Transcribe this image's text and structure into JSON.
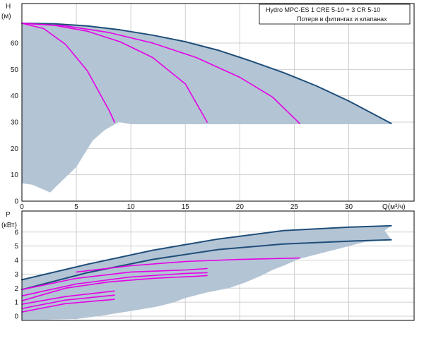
{
  "chart_data": [
    {
      "type": "line",
      "legend": {
        "title": "Hydro MPC-ES 1 CRE 5-10  +  3 CR 5-10",
        "subtitle": "Потеря в фитингах и клапанах",
        "placement": "top-right"
      },
      "xlabel": "Q(м³/ч)",
      "ylabel": "H",
      "ylabel_unit": "(м)",
      "xlim": [
        0,
        36
      ],
      "ylim": [
        0,
        75
      ],
      "xticks": [
        0,
        5,
        10,
        15,
        20,
        25,
        30
      ],
      "yticks": [
        0,
        10,
        20,
        30,
        40,
        50,
        60
      ],
      "grid": true,
      "shade_color": "#b3c4d5",
      "colors": {
        "max_curve": "#1f4e79",
        "speed_curves": "#e600e6",
        "grid": "#cfcfcf",
        "axis": "#000000"
      },
      "shaded_region": {
        "upper": [
          [
            0,
            67.5
          ],
          [
            5,
            66.8
          ],
          [
            10,
            64.5
          ],
          [
            15,
            60.5
          ],
          [
            20,
            55
          ],
          [
            25,
            47.5
          ],
          [
            30,
            38
          ],
          [
            33.9,
            29.5
          ]
        ],
        "lower": [
          [
            33.9,
            29.2
          ],
          [
            10,
            29.2
          ],
          [
            8.9,
            30
          ],
          [
            7.6,
            27
          ],
          [
            6.5,
            23
          ],
          [
            5,
            13
          ],
          [
            3,
            5
          ],
          [
            2.6,
            3.3
          ],
          [
            1,
            6.2
          ],
          [
            0,
            6.8
          ]
        ]
      },
      "series": [
        {
          "role": "max-speed",
          "color": "#1f4e79",
          "x": [
            0,
            3,
            6,
            9,
            12,
            15,
            18,
            21,
            24,
            27,
            30,
            33.9
          ],
          "y": [
            67.5,
            67.3,
            66.5,
            65,
            63,
            60.5,
            57.3,
            53.2,
            48.8,
            43.8,
            38,
            29.5
          ]
        },
        {
          "role": "one-pump",
          "color": "#e600e6",
          "x": [
            0,
            2,
            4,
            6,
            8,
            8.5
          ],
          "y": [
            67.5,
            65.5,
            59.5,
            49.5,
            34.5,
            30
          ]
        },
        {
          "role": "two-pumps",
          "color": "#e600e6",
          "x": [
            0,
            3,
            6,
            9,
            12,
            15,
            17
          ],
          "y": [
            67.5,
            66.7,
            64.5,
            60.5,
            54.5,
            44.5,
            30
          ]
        },
        {
          "role": "three-pumps",
          "color": "#e600e6",
          "x": [
            0,
            4,
            8,
            12,
            16,
            20,
            23,
            25.5
          ],
          "y": [
            67.5,
            66.5,
            64,
            60,
            54.5,
            47,
            39.5,
            29.5
          ]
        }
      ]
    },
    {
      "type": "line",
      "ylabel": "P",
      "ylabel_unit": "(кВт)",
      "xlim": [
        0,
        36
      ],
      "ylim": [
        -0.3,
        7.5
      ],
      "yticks": [
        0,
        1,
        2,
        3,
        4,
        5,
        6
      ],
      "grid": true,
      "shade_color": "#b3c4d5",
      "shaded_region": {
        "upper": [
          [
            0,
            2.6
          ],
          [
            6,
            3.7
          ],
          [
            12,
            4.7
          ],
          [
            18,
            5.5
          ],
          [
            24,
            6.1
          ],
          [
            30,
            6.35
          ],
          [
            33.9,
            6.45
          ]
        ],
        "lower": [
          [
            33.9,
            6.45
          ],
          [
            33.3,
            6.1
          ],
          [
            33.9,
            5.45
          ],
          [
            31.5,
            5.3
          ],
          [
            29.5,
            4.9
          ],
          [
            27.5,
            4.5
          ],
          [
            25.5,
            4.1
          ],
          [
            24,
            3.6
          ],
          [
            23,
            3.3
          ],
          [
            22,
            2.9
          ],
          [
            20.5,
            2.4
          ],
          [
            19,
            2.0
          ],
          [
            17,
            1.7
          ],
          [
            16.5,
            1.6
          ],
          [
            15,
            1.3
          ],
          [
            14,
            1.0
          ],
          [
            12.5,
            0.7
          ],
          [
            11,
            0.5
          ],
          [
            9,
            0.25
          ],
          [
            7,
            0.0
          ],
          [
            5,
            -0.2
          ],
          [
            2,
            -0.25
          ],
          [
            0,
            -0.25
          ]
        ]
      },
      "series": [
        {
          "role": "top-dark",
          "color": "#1f4e79",
          "x": [
            0,
            6,
            12,
            18,
            24,
            30,
            33.9
          ],
          "y": [
            2.6,
            3.7,
            4.7,
            5.5,
            6.1,
            6.35,
            6.45
          ]
        },
        {
          "role": "second-dark",
          "color": "#1f4e79",
          "x": [
            0,
            6,
            12,
            18,
            24,
            30,
            33.9
          ],
          "y": [
            1.9,
            3.1,
            4.05,
            4.75,
            5.15,
            5.35,
            5.45
          ]
        },
        {
          "role": "magenta-1",
          "color": "#e600e6",
          "x": [
            5,
            10,
            15,
            20,
            25.5
          ],
          "y": [
            3.15,
            3.6,
            3.9,
            4.05,
            4.15
          ]
        },
        {
          "role": "magenta-2",
          "color": "#e600e6",
          "x": [
            0,
            5,
            10,
            15,
            17
          ],
          "y": [
            1.9,
            2.7,
            3.15,
            3.3,
            3.4
          ]
        },
        {
          "role": "magenta-3",
          "color": "#e600e6",
          "x": [
            0,
            5,
            10,
            15,
            17
          ],
          "y": [
            1.45,
            2.3,
            2.8,
            3.05,
            3.1
          ]
        },
        {
          "role": "magenta-4",
          "color": "#e600e6",
          "x": [
            0,
            4,
            8,
            12,
            16,
            17
          ],
          "y": [
            1.1,
            2.0,
            2.45,
            2.7,
            2.85,
            2.9
          ]
        },
        {
          "role": "magenta-5",
          "color": "#e600e6",
          "x": [
            0,
            4,
            8.5
          ],
          "y": [
            0.85,
            1.4,
            1.8
          ]
        },
        {
          "role": "magenta-6",
          "color": "#e600e6",
          "x": [
            0,
            4,
            8.5
          ],
          "y": [
            0.55,
            1.15,
            1.5
          ]
        },
        {
          "role": "magenta-7",
          "color": "#e600e6",
          "x": [
            0,
            4,
            8.5
          ],
          "y": [
            0.3,
            0.9,
            1.2
          ]
        }
      ]
    }
  ]
}
